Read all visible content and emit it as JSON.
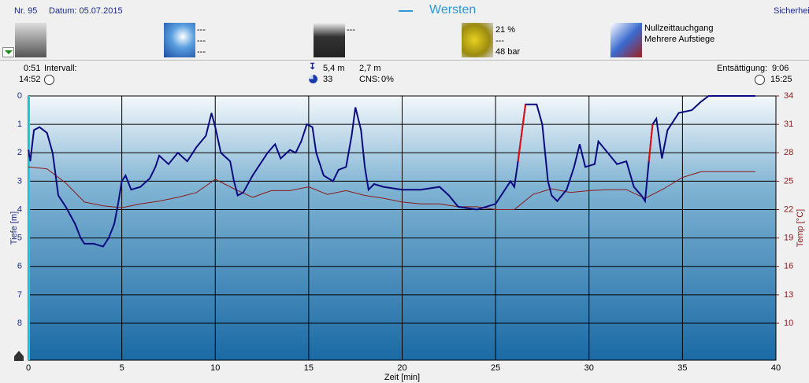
{
  "header": {
    "number": "Nr. 95",
    "date": "Datum: 05.07.2015",
    "site": "Wersten",
    "right": "Sicherhei"
  },
  "info": {
    "weather": [
      "---",
      "---",
      "---"
    ],
    "camera": "---",
    "gas": [
      "21 %",
      "---",
      "48 bar"
    ],
    "dive_type": [
      "Nullzeittauchgang",
      "Mehrere Aufstiege"
    ]
  },
  "stats": {
    "duration": "0:51",
    "interval_label": "Intervall:",
    "start_time": "14:52",
    "max_depth": "5,4 m",
    "avg_depth": "2,7 m",
    "marker": "33",
    "cns_label": "CNS:",
    "cns": "0%",
    "desat_label": "Entsättigung:",
    "desat": "9:06",
    "end_time": "15:25"
  },
  "chart_data": {
    "type": "line",
    "xlabel": "Zeit [min]",
    "ylabel": "Tiefe [m]",
    "y2label": "Temp [°C]",
    "xlim": [
      0,
      40
    ],
    "xticks": [
      0,
      5,
      10,
      15,
      20,
      25,
      30,
      35,
      40
    ],
    "ylim": [
      0,
      9.3
    ],
    "y_inverted": true,
    "yticks": [
      0,
      1,
      2,
      3,
      4,
      5,
      6,
      7,
      8
    ],
    "y2lim": [
      6.1,
      34
    ],
    "y2ticks": [
      34,
      31,
      28,
      25,
      22,
      19,
      16,
      13,
      10
    ],
    "grid": true,
    "series": [
      {
        "color": "#0a0a80",
        "x": [
          0,
          0.1,
          0.3,
          0.6,
          1.0,
          1.3,
          1.6,
          2.0,
          2.5,
          2.8,
          3.0,
          3.5,
          4.0,
          4.3,
          4.6,
          4.8,
          5.0,
          5.2,
          5.5,
          6.0,
          6.5,
          6.8,
          7.0,
          7.5,
          8.0,
          8.5,
          9.0,
          9.5,
          9.8,
          10.0,
          10.3,
          10.8,
          11.0,
          11.2,
          11.5,
          12.0,
          12.3,
          12.8,
          13.2,
          13.5,
          14.0,
          14.3,
          14.6,
          14.9,
          15.2,
          15.4,
          15.8,
          16.3,
          16.6,
          17.0,
          17.3,
          17.5,
          17.8,
          18.0,
          18.2,
          18.5,
          19.0,
          20.0,
          21.0,
          22.0,
          22.5,
          23.0,
          24.0,
          25.0,
          25.5,
          25.8,
          26.0,
          26.2,
          26.6,
          27.2,
          27.5,
          27.8,
          28.0,
          28.3,
          28.8,
          29.2,
          29.5,
          29.8,
          30.3,
          30.5,
          31.0,
          31.5,
          32.0,
          32.4,
          32.8,
          33.0,
          33.2,
          33.4,
          33.6,
          33.9,
          34.2,
          34.8,
          35.5,
          36.0,
          36.4,
          38.0,
          38.9
        ],
        "values": [
          1.9,
          2.3,
          1.2,
          1.1,
          1.3,
          2.0,
          3.5,
          3.9,
          4.5,
          5.0,
          5.2,
          5.2,
          5.3,
          5.0,
          4.5,
          3.8,
          3.0,
          2.8,
          3.3,
          3.2,
          2.9,
          2.5,
          2.1,
          2.4,
          2.0,
          2.3,
          1.8,
          1.4,
          0.6,
          1.1,
          2.0,
          2.3,
          3.0,
          3.5,
          3.4,
          2.8,
          2.5,
          2.0,
          1.7,
          2.2,
          1.9,
          2.0,
          1.6,
          1.0,
          1.1,
          2.0,
          2.8,
          3.0,
          2.6,
          2.5,
          1.4,
          0.4,
          1.2,
          2.5,
          3.3,
          3.1,
          3.2,
          3.3,
          3.3,
          3.2,
          3.5,
          3.9,
          4.0,
          3.8,
          3.3,
          3.0,
          3.2,
          2.3,
          0.3,
          0.3,
          1.0,
          3.0,
          3.5,
          3.7,
          3.3,
          2.5,
          1.7,
          2.5,
          2.4,
          1.6,
          2.0,
          2.4,
          2.3,
          3.2,
          3.5,
          3.7,
          2.3,
          1.0,
          0.8,
          2.2,
          1.2,
          0.6,
          0.5,
          0.2,
          0.0,
          0.0,
          0.0
        ]
      },
      {
        "color": "#e01010",
        "x": [
          26.2,
          26.6
        ],
        "values": [
          2.3,
          0.3
        ]
      },
      {
        "color": "#e01010",
        "x": [
          33.2,
          33.4
        ],
        "values": [
          2.3,
          1.0
        ]
      },
      {
        "color": "#8b1a1a",
        "axis": "y2",
        "x": [
          0,
          1,
          2,
          3,
          4,
          5,
          6,
          7,
          8,
          9,
          10,
          11,
          12,
          13,
          14,
          15,
          16,
          17,
          18,
          19,
          20,
          21,
          22,
          23,
          24,
          25,
          26,
          27,
          28,
          29,
          30,
          31,
          32,
          33,
          34,
          35,
          36,
          37,
          38,
          38.9
        ],
        "values": [
          26.5,
          26.3,
          24.8,
          22.8,
          22.4,
          22.2,
          22.6,
          22.9,
          23.3,
          23.8,
          25.2,
          24.2,
          23.3,
          24.0,
          24.0,
          24.4,
          23.6,
          24.0,
          23.5,
          23.2,
          22.8,
          22.6,
          22.6,
          22.3,
          22.3,
          22.0,
          22.0,
          23.6,
          24.2,
          23.8,
          24.0,
          24.1,
          24.1,
          23.2,
          24.2,
          25.4,
          26.0,
          26.0,
          26.0,
          26.0
        ]
      }
    ]
  }
}
